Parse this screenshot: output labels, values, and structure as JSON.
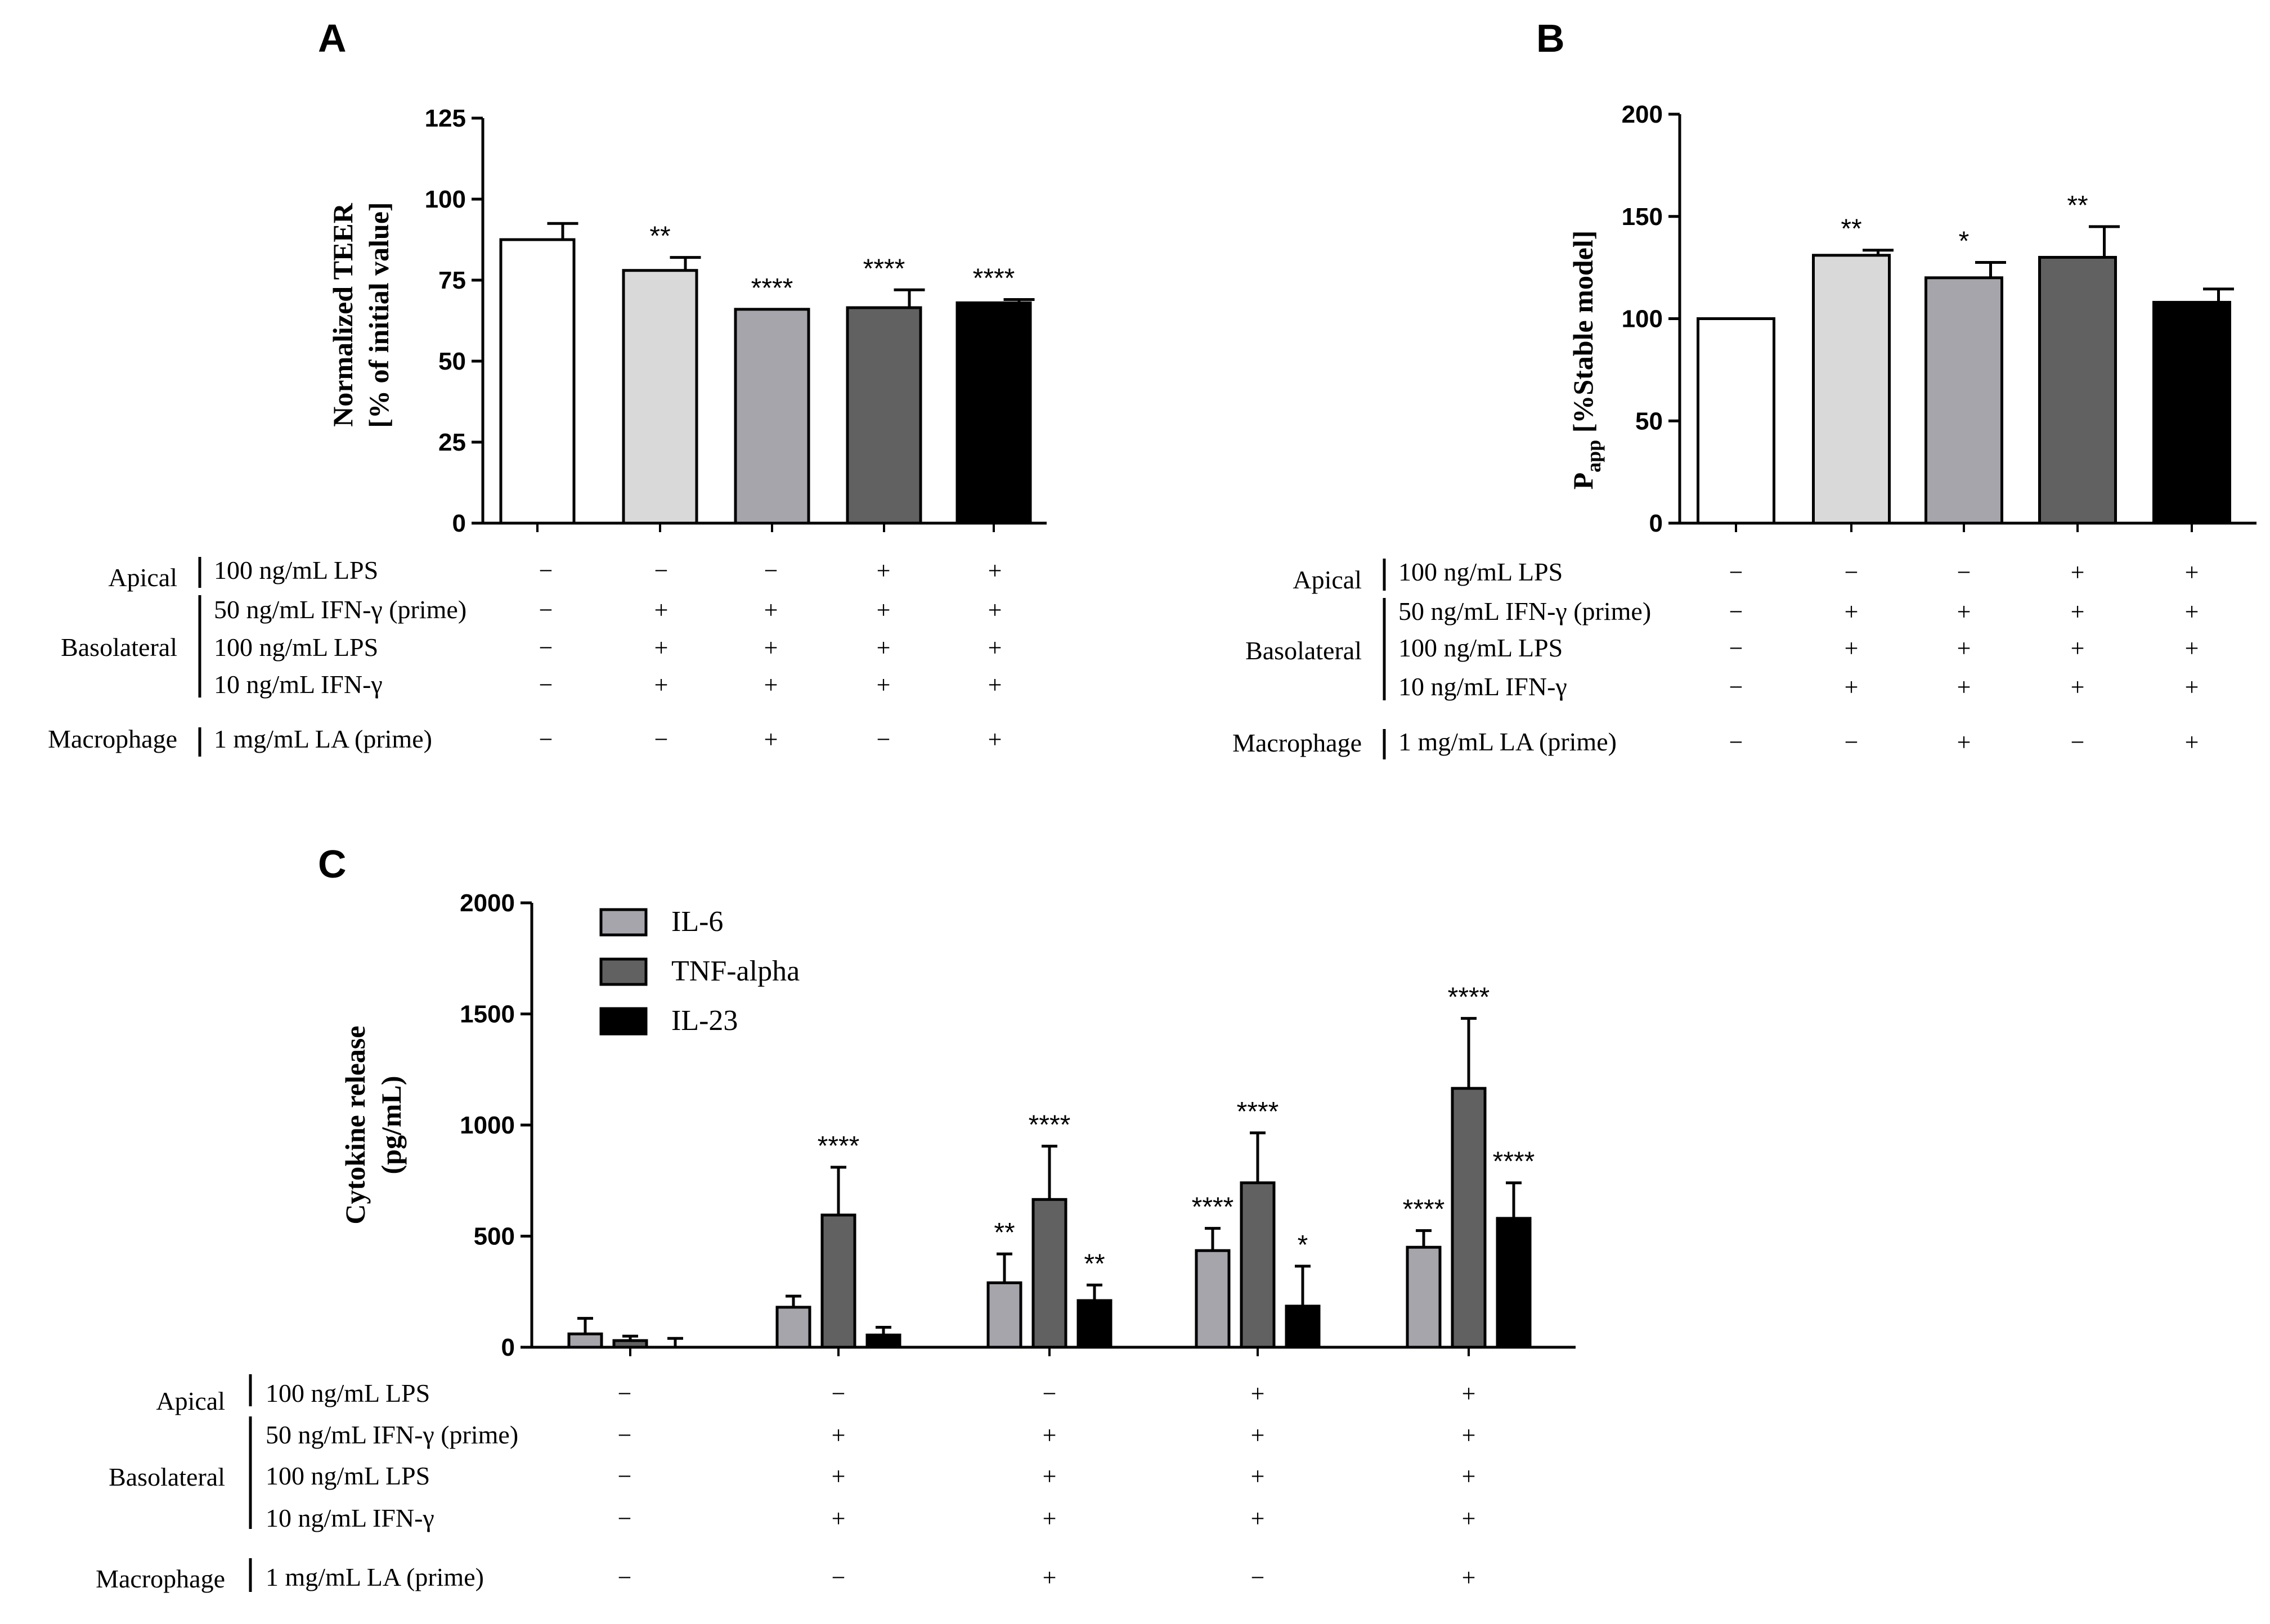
{
  "chart_data": [
    {
      "panel": "A",
      "type": "bar",
      "ylabel_line1": "Normalized TEER",
      "ylabel_line2": "[% of initial value]",
      "ylim": [
        0,
        125
      ],
      "yticks": [
        "0",
        "25",
        "50",
        "75",
        "100",
        "125"
      ],
      "values": [
        87.5,
        78,
        66,
        66.5,
        68
      ],
      "errors": [
        5,
        4,
        0,
        5.5,
        1
      ],
      "significance": [
        "",
        "**",
        "****",
        "****",
        "****"
      ],
      "bar_colors": [
        "#ffffff",
        "#d9d9d9",
        "#a6a5ab",
        "#616161",
        "#000000"
      ],
      "conditions": {
        "rows": [
          {
            "group": "Apical",
            "label": "100 ng/mL LPS",
            "values": [
              "−",
              "−",
              "−",
              "+",
              "+"
            ]
          },
          {
            "group": "Basolateral",
            "label": "50 ng/mL IFN-γ (prime)",
            "values": [
              "−",
              "+",
              "+",
              "+",
              "+"
            ]
          },
          {
            "group": "",
            "label": "100 ng/mL LPS",
            "values": [
              "−",
              "+",
              "+",
              "+",
              "+"
            ]
          },
          {
            "group": "",
            "label": "10 ng/mL IFN-γ",
            "values": [
              "−",
              "+",
              "+",
              "+",
              "+"
            ]
          },
          {
            "group": "Macrophage",
            "label": "1 mg/mL LA (prime)",
            "values": [
              "−",
              "−",
              "+",
              "−",
              "+"
            ]
          }
        ]
      }
    },
    {
      "panel": "B",
      "type": "bar",
      "ylabel_main": "P",
      "ylabel_sub": "app",
      "ylabel_rest": " [%Stable model]",
      "ylim": [
        0,
        200
      ],
      "yticks": [
        "0",
        "50",
        "100",
        "150",
        "200"
      ],
      "values": [
        100,
        131,
        120,
        130,
        108
      ],
      "errors": [
        0,
        2.5,
        7.5,
        15,
        6.5
      ],
      "significance": [
        "",
        "**",
        "*",
        "**",
        ""
      ],
      "bar_colors": [
        "#ffffff",
        "#d9d9d9",
        "#a6a5ab",
        "#616161",
        "#000000"
      ],
      "conditions": {
        "rows": [
          {
            "group": "Apical",
            "label": "100 ng/mL LPS",
            "values": [
              "−",
              "−",
              "−",
              "+",
              "+"
            ]
          },
          {
            "group": "Basolateral",
            "label": "50 ng/mL IFN-γ (prime)",
            "values": [
              "−",
              "+",
              "+",
              "+",
              "+"
            ]
          },
          {
            "group": "",
            "label": "100 ng/mL LPS",
            "values": [
              "−",
              "+",
              "+",
              "+",
              "+"
            ]
          },
          {
            "group": "",
            "label": "10 ng/mL IFN-γ",
            "values": [
              "−",
              "+",
              "+",
              "+",
              "+"
            ]
          },
          {
            "group": "Macrophage",
            "label": "1 mg/mL LA (prime)",
            "values": [
              "−",
              "−",
              "+",
              "−",
              "+"
            ]
          }
        ]
      }
    },
    {
      "panel": "C",
      "type": "bar",
      "ylabel_line1": "Cytokine release",
      "ylabel_line2": "(pg/mL)",
      "ylim": [
        0,
        2000
      ],
      "yticks": [
        "0",
        "500",
        "1000",
        "1500",
        "2000"
      ],
      "series": [
        {
          "name": "IL-6",
          "color": "#a6a5ab",
          "values": [
            60,
            180,
            290,
            435,
            450
          ],
          "errors": [
            70,
            50,
            130,
            100,
            75
          ],
          "significance": [
            "",
            "",
            "**",
            "****",
            "****"
          ]
        },
        {
          "name": "TNF-alpha",
          "color": "#616161",
          "values": [
            30,
            595,
            665,
            740,
            1165
          ],
          "errors": [
            20,
            215,
            240,
            225,
            315
          ],
          "significance": [
            "",
            "****",
            "****",
            "****",
            "****"
          ]
        },
        {
          "name": "IL-23",
          "color": "#000000",
          "values": [
            0,
            55,
            210,
            185,
            580
          ],
          "errors": [
            40,
            35,
            70,
            180,
            160
          ],
          "significance": [
            "",
            "",
            "**",
            "*",
            "****"
          ]
        }
      ],
      "conditions": {
        "rows": [
          {
            "group": "Apical",
            "label": "100 ng/mL LPS",
            "values": [
              "−",
              "−",
              "−",
              "+",
              "+"
            ]
          },
          {
            "group": "Basolateral",
            "label": "50 ng/mL IFN-γ (prime)",
            "values": [
              "−",
              "+",
              "+",
              "+",
              "+"
            ]
          },
          {
            "group": "",
            "label": "100 ng/mL LPS",
            "values": [
              "−",
              "+",
              "+",
              "+",
              "+"
            ]
          },
          {
            "group": "",
            "label": "10 ng/mL IFN-γ",
            "values": [
              "−",
              "+",
              "+",
              "+",
              "+"
            ]
          },
          {
            "group": "Macrophage",
            "label": "1 mg/mL LA (prime)",
            "values": [
              "−",
              "−",
              "+",
              "−",
              "+"
            ]
          }
        ]
      }
    }
  ]
}
